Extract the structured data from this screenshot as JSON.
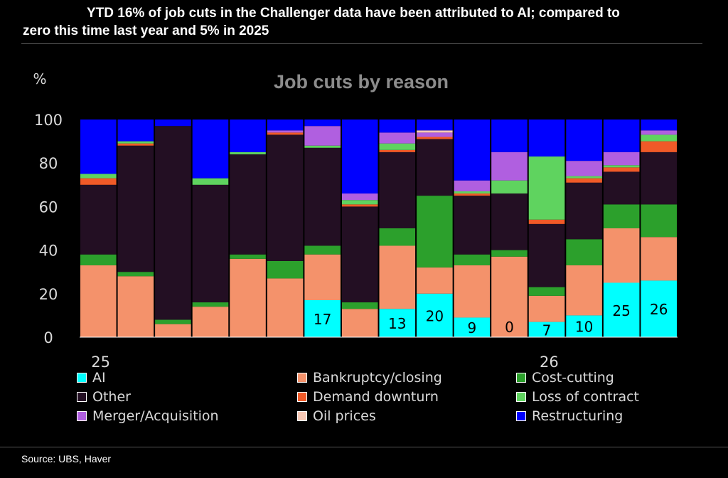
{
  "headline": {
    "line1": "YTD 16% of job cuts in the Challenger data have been attributed to AI; compared to",
    "line2": "zero this time last year and 5% in 2025"
  },
  "source": "Source: UBS, Haver",
  "chart_data": {
    "type": "bar",
    "stacked": true,
    "title": "Job cuts by reason",
    "ylabel": "%",
    "ylim": [
      0,
      100
    ],
    "yticks": [
      0,
      20,
      40,
      60,
      80,
      100
    ],
    "x_tick_labels": [
      {
        "index": 0,
        "label": "25"
      },
      {
        "index": 12,
        "label": "26"
      }
    ],
    "categories_count": 16,
    "series": [
      {
        "name": "AI",
        "color": "#00ffff",
        "values": [
          0,
          0,
          0,
          0,
          0,
          0,
          17,
          0,
          13,
          20,
          9,
          0,
          7,
          10,
          25,
          26
        ]
      },
      {
        "name": "Bankruptcy/closing",
        "color": "#f4926b",
        "values": [
          33,
          28,
          6,
          14,
          36,
          27,
          21,
          13,
          29,
          12,
          24,
          37,
          12,
          23,
          25,
          20
        ]
      },
      {
        "name": "Cost-cutting",
        "color": "#2ca02c",
        "values": [
          5,
          2,
          2,
          2,
          2,
          8,
          4,
          3,
          8,
          33,
          5,
          3,
          4,
          12,
          11,
          15
        ]
      },
      {
        "name": "Other",
        "color": "#230f23",
        "values": [
          32,
          58,
          89,
          54,
          46,
          58,
          45,
          44,
          35,
          26,
          27,
          26,
          29,
          26,
          15,
          24
        ]
      },
      {
        "name": "Demand downturn",
        "color": "#f05a28",
        "values": [
          3,
          1,
          0,
          0,
          0,
          1,
          0,
          1,
          1,
          1,
          1,
          0,
          2,
          2,
          2,
          5
        ]
      },
      {
        "name": "Loss of contract",
        "color": "#5fd35f",
        "values": [
          2,
          1,
          0,
          3,
          1,
          0,
          1,
          2,
          3,
          0,
          1,
          6,
          29,
          1,
          1,
          3
        ]
      },
      {
        "name": "Merger/Acquisition",
        "color": "#b05fe0",
        "values": [
          0,
          0,
          0,
          0,
          0,
          1,
          9,
          3,
          5,
          2,
          5,
          13,
          0,
          7,
          6,
          2
        ]
      },
      {
        "name": "Oil prices",
        "color": "#f8c9b5",
        "values": [
          0,
          0,
          0,
          0,
          0,
          0,
          0,
          0,
          0,
          1,
          0,
          0,
          0,
          0,
          0,
          0
        ]
      },
      {
        "name": "Restructuring",
        "color": "#0000ff",
        "values": [
          25,
          10,
          3,
          27,
          15,
          5,
          3,
          34,
          6,
          5,
          28,
          15,
          17,
          19,
          15,
          5
        ]
      }
    ],
    "data_labels": [
      {
        "index": 6,
        "text": "17"
      },
      {
        "index": 8,
        "text": "13"
      },
      {
        "index": 9,
        "text": "20"
      },
      {
        "index": 10,
        "text": "9"
      },
      {
        "index": 11,
        "text": "0"
      },
      {
        "index": 12,
        "text": "7"
      },
      {
        "index": 13,
        "text": "10"
      },
      {
        "index": 14,
        "text": "25"
      },
      {
        "index": 15,
        "text": "26"
      }
    ],
    "legend": {
      "placement": "bottom",
      "columns": 3
    },
    "grid": false
  }
}
